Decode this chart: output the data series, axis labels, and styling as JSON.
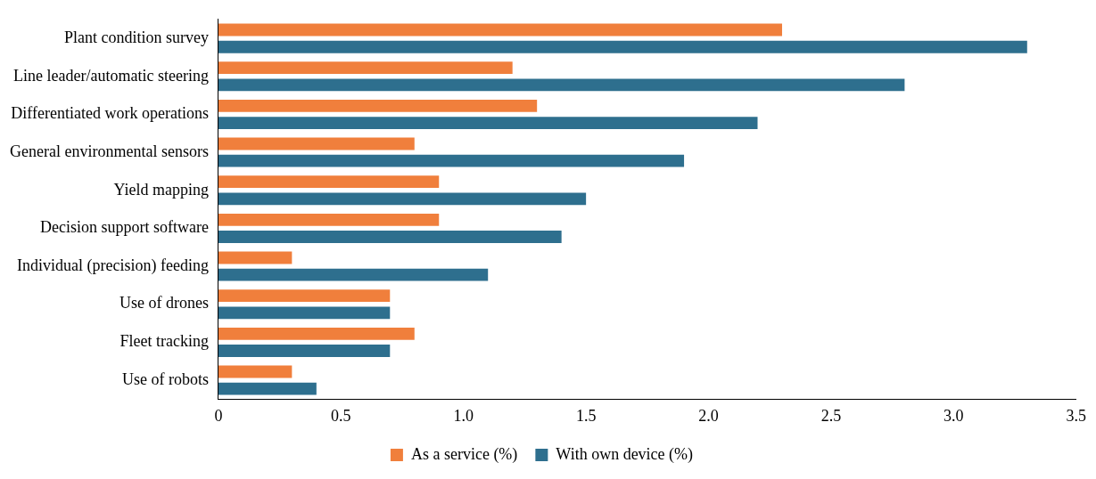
{
  "chart_data": {
    "type": "bar",
    "orientation": "horizontal",
    "categories": [
      "Plant condition survey",
      "Line leader/automatic steering",
      "Differentiated work operations",
      "General environmental sensors",
      "Yield mapping",
      "Decision support software",
      "Individual (precision) feeding",
      "Use of drones",
      "Fleet tracking",
      "Use of robots"
    ],
    "series": [
      {
        "name": "As a service (%)",
        "color": "#f07f3c",
        "values": [
          2.3,
          1.2,
          1.3,
          0.8,
          0.9,
          0.9,
          0.3,
          0.7,
          0.8,
          0.3
        ]
      },
      {
        "name": "With own device (%)",
        "color": "#2e6f8e",
        "values": [
          3.3,
          2.8,
          2.2,
          1.9,
          1.5,
          1.4,
          1.1,
          0.7,
          0.7,
          0.4
        ]
      }
    ],
    "xlim": [
      0,
      3.5
    ],
    "xticks": [
      0,
      0.5,
      {
        "value": 1,
        "label": "1.0"
      },
      1.5,
      {
        "value": 2,
        "label": "2.0"
      },
      2.5,
      {
        "value": 3,
        "label": "3.0"
      },
      3.5
    ],
    "grid": false,
    "legend": "bottom"
  }
}
